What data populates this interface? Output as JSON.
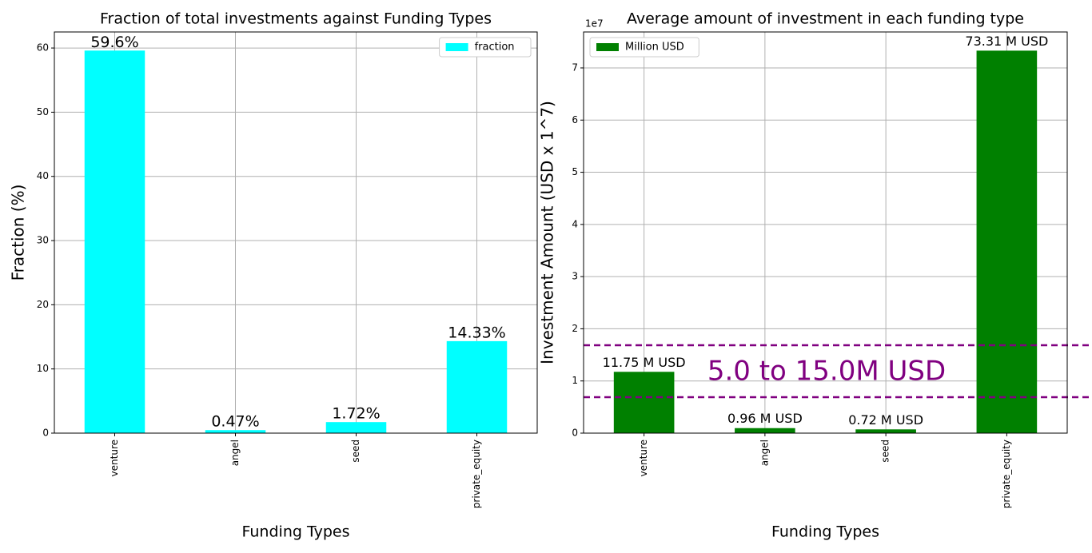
{
  "chart_data": [
    {
      "type": "bar",
      "title": "Fraction of total investments against Funding Types",
      "xlabel": "Funding Types",
      "ylabel": "Fraction (%)",
      "categories": [
        "venture",
        "angel",
        "seed",
        "private_equity"
      ],
      "series": [
        {
          "name": "fraction",
          "color": "#00ffff",
          "values": [
            59.6,
            0.47,
            1.72,
            14.33
          ],
          "value_labels": [
            "59.6%",
            "0.47%",
            "1.72%",
            "14.33%"
          ]
        }
      ],
      "ylim": [
        0,
        62.5
      ],
      "yticks": [
        0,
        10,
        20,
        30,
        40,
        50,
        60
      ],
      "grid": true,
      "legend": "upper-right"
    },
    {
      "type": "bar",
      "title": "Average amount of investment in each funding type",
      "xlabel": "Funding Types",
      "ylabel": "Investment Amount (USD x 1^7)",
      "y_offset_label": "1e7",
      "categories": [
        "venture",
        "angel",
        "seed",
        "private_equity"
      ],
      "series": [
        {
          "name": "Million USD",
          "color": "#008000",
          "values": [
            11750000,
            960000,
            720000,
            73310000
          ],
          "value_labels": [
            "11.75 M USD",
            "0.96 M USD",
            "0.72 M USD",
            "73.31 M USD"
          ]
        }
      ],
      "ylim": [
        0,
        76890000
      ],
      "yticks": [
        0,
        {
          "value": 10000000,
          "label": "1"
        },
        {
          "value": 20000000,
          "label": "2"
        },
        {
          "value": 30000000,
          "label": "3"
        },
        {
          "value": 40000000,
          "label": "4"
        },
        {
          "value": 50000000,
          "label": "5"
        },
        {
          "value": 60000000,
          "label": "6"
        },
        {
          "value": 70000000,
          "label": "7"
        }
      ],
      "hlines": [
        6890000,
        16850000
      ],
      "hline_color": "#800080",
      "annotation": "5.0 to 15.0M USD",
      "grid": true,
      "legend": "upper-left"
    }
  ]
}
